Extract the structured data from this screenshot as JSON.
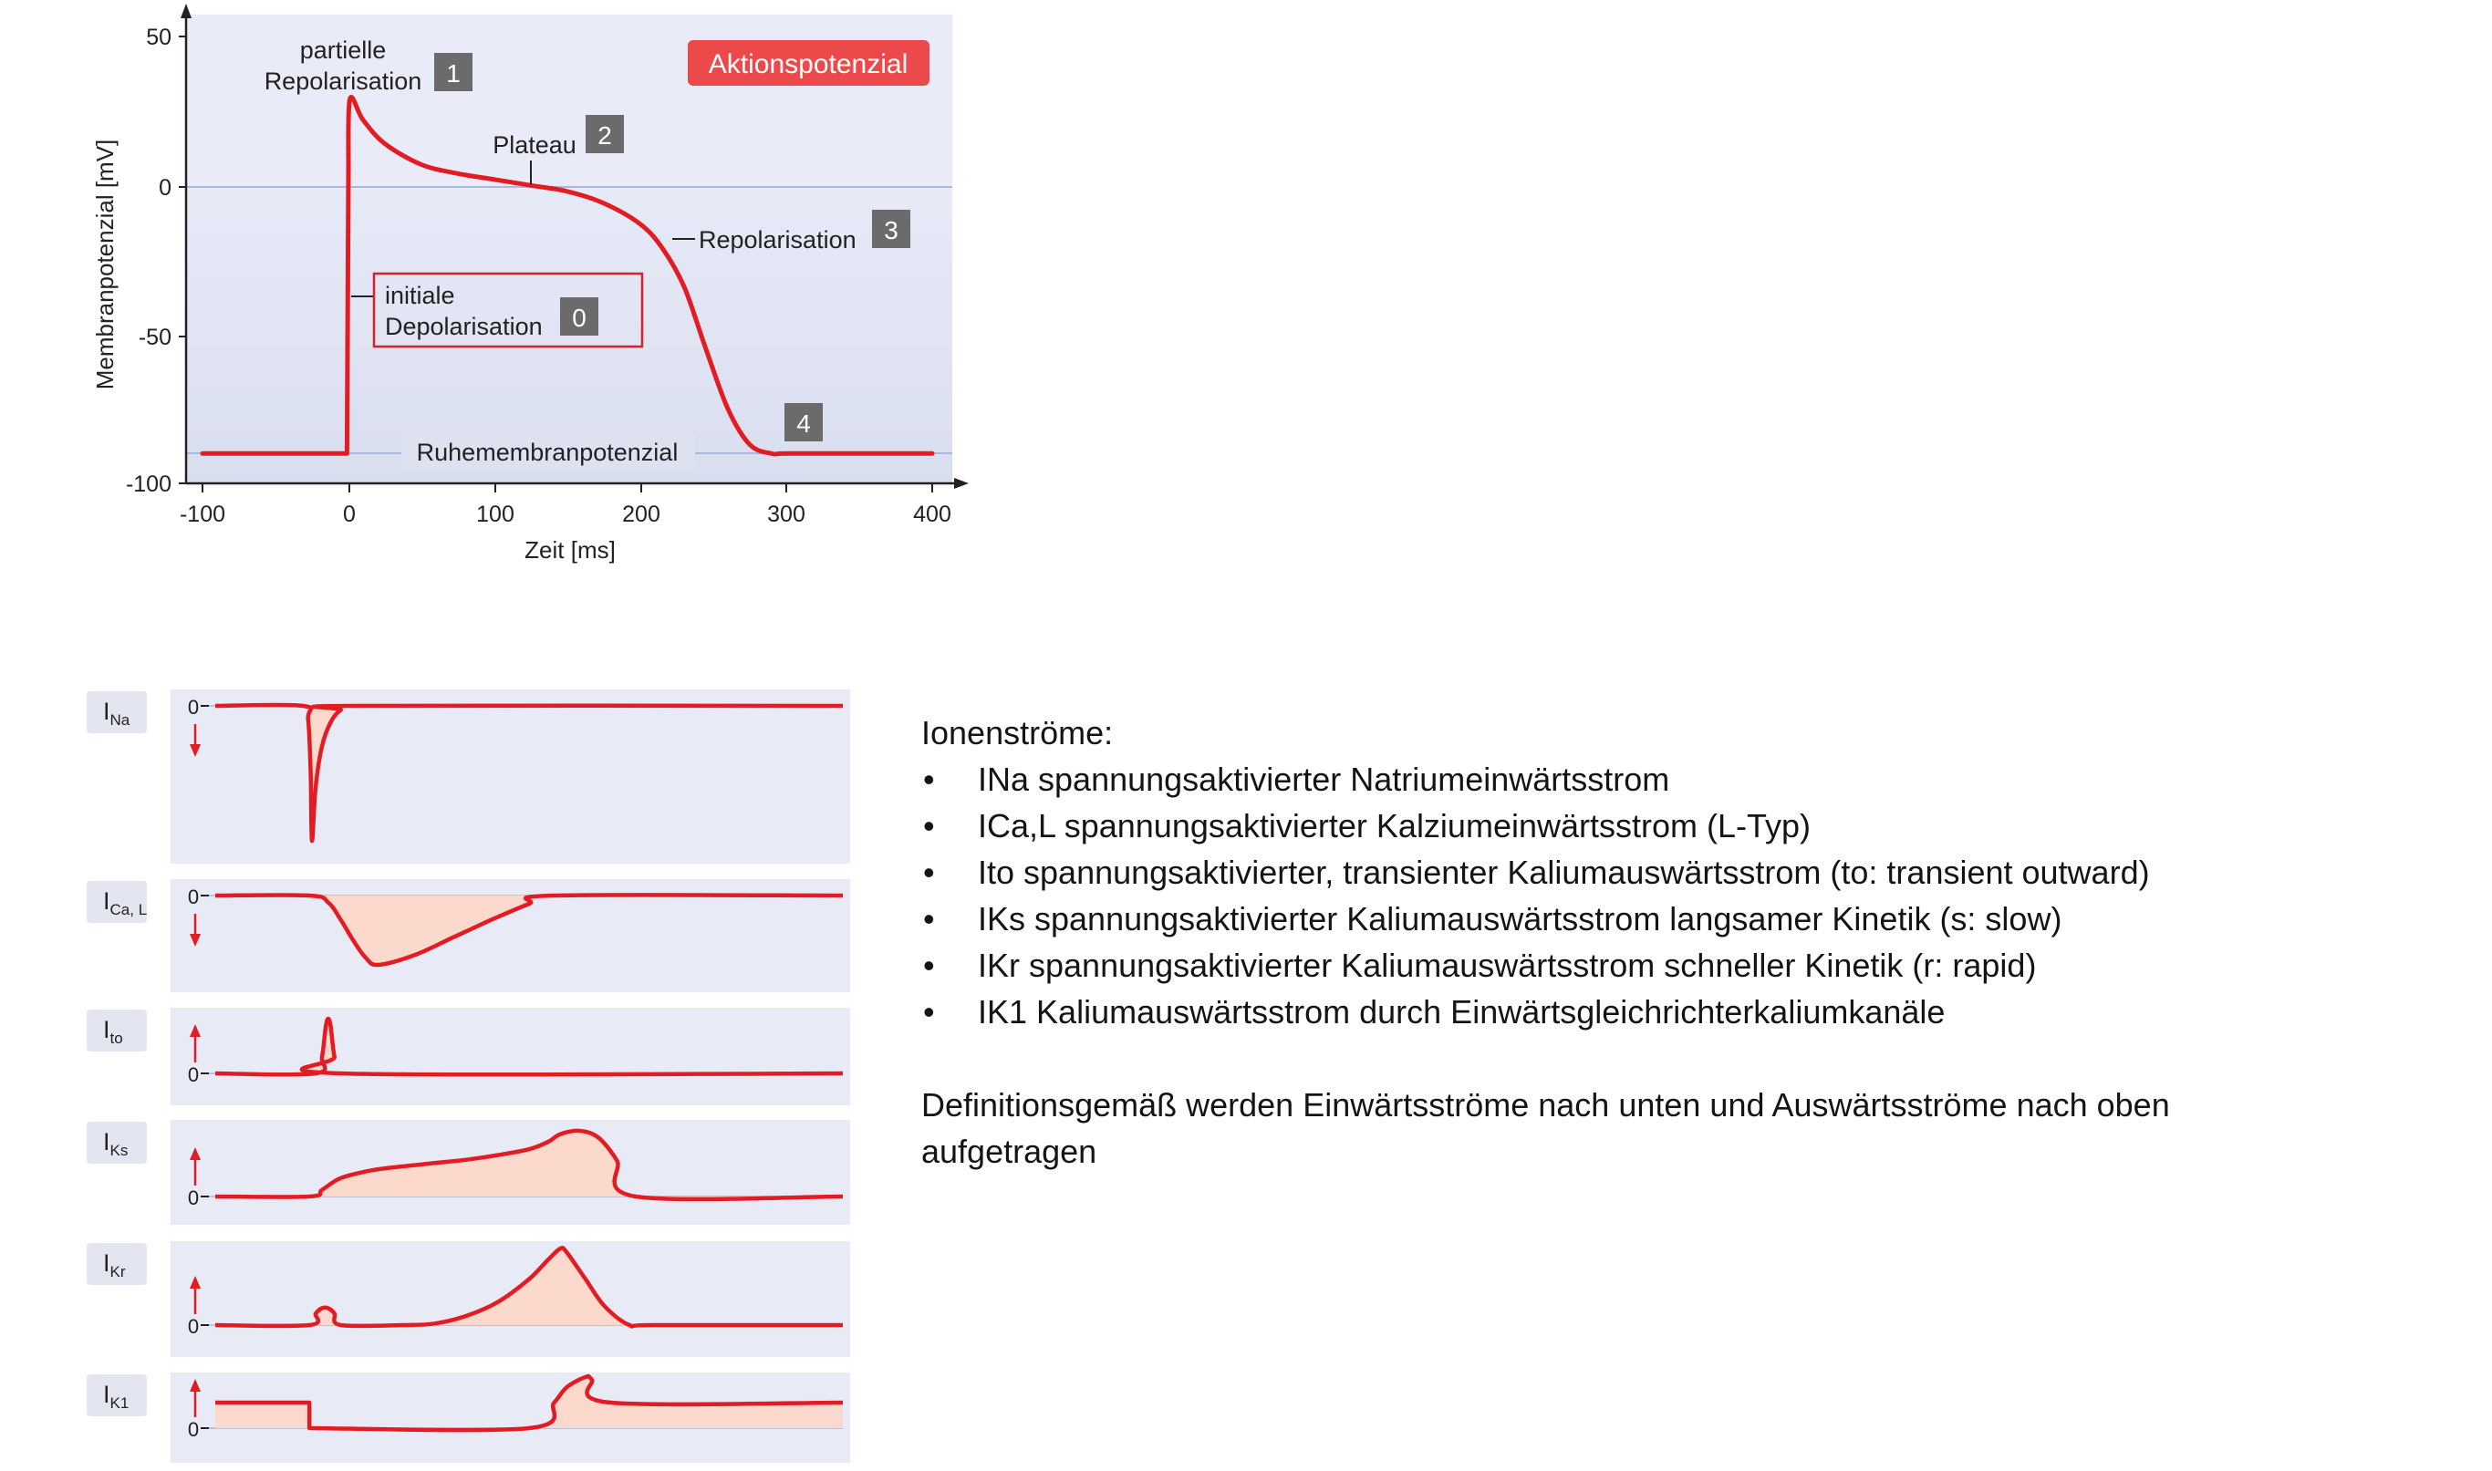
{
  "action_potential": {
    "badge": "Aktionspotenzial",
    "ylabel": "Membranpotenzial [mV]",
    "xlabel": "Zeit [ms]",
    "y_ticks": [
      "50",
      "0",
      "-50",
      "-100"
    ],
    "x_ticks": [
      "-100",
      "0",
      "100",
      "200",
      "300",
      "400"
    ],
    "phase_labels": {
      "p0_line1": "initiale",
      "p0_line2": "Depolarisation",
      "p0_num": "0",
      "p1_line1": "partielle",
      "p1_line2": "Repolarisation",
      "p1_num": "1",
      "p2_label": "Plateau",
      "p2_num": "2",
      "p3_label": "Repolarisation",
      "p3_num": "3",
      "p4_num": "4",
      "rest_label": "Ruhemembranpotenzial"
    }
  },
  "chart_data": [
    {
      "type": "line",
      "xlim": [
        -100,
        400
      ],
      "ylim": [
        -100,
        50
      ],
      "x_ticks": [
        -100,
        0,
        100,
        200,
        300,
        400
      ],
      "y_ticks": [
        -100,
        -50,
        0,
        50
      ],
      "grid": false,
      "color": "#e31b23",
      "x": [
        -100,
        -1,
        0,
        1,
        10,
        25,
        50,
        75,
        100,
        125,
        150,
        175,
        200,
        215,
        230,
        245,
        260,
        275,
        290,
        300,
        350,
        400
      ],
      "y": [
        -90,
        -90,
        5,
        29,
        22,
        14,
        7,
        4,
        2,
        0,
        -2,
        -6,
        -13,
        -21,
        -34,
        -55,
        -75,
        -87,
        -90,
        -90,
        -90,
        -90
      ]
    },
    {
      "type": "area",
      "x_units": "ms",
      "color": "#e31b23",
      "fill": "#fbd9cd",
      "series": [
        {
          "name": "INa",
          "direction": "down",
          "x": [
            -100,
            -30,
            -26,
            -24,
            -23,
            -20,
            -15,
            -8,
            0,
            10,
            400
          ],
          "y": [
            0,
            0,
            -0.1,
            -0.5,
            -1,
            -0.6,
            -0.3,
            -0.12,
            -0.03,
            0,
            0
          ]
        },
        {
          "name": "ICa,L",
          "direction": "down",
          "x": [
            -100,
            -25,
            -10,
            0,
            10,
            20,
            30,
            60,
            90,
            120,
            150,
            170,
            400
          ],
          "y": [
            0,
            0,
            -0.1,
            -0.35,
            -0.65,
            -0.9,
            -1,
            -0.85,
            -0.6,
            -0.35,
            -0.12,
            0,
            0
          ]
        },
        {
          "name": "Ito",
          "direction": "up",
          "x": [
            -100,
            -20,
            -15,
            -12,
            -10,
            -8,
            -5,
            0,
            400
          ],
          "y": [
            0,
            0,
            0.3,
            0.85,
            1,
            0.85,
            0.3,
            0,
            0
          ]
        },
        {
          "name": "IKs",
          "direction": "up",
          "x": [
            -100,
            -25,
            -15,
            0,
            25,
            50,
            75,
            100,
            125,
            150,
            165,
            175,
            190,
            205,
            220,
            235,
            400
          ],
          "y": [
            0,
            0,
            0.1,
            0.28,
            0.4,
            0.46,
            0.51,
            0.56,
            0.63,
            0.72,
            0.83,
            0.95,
            1,
            0.9,
            0.55,
            0,
            0
          ]
        },
        {
          "name": "IKr",
          "direction": "up",
          "x": [
            -100,
            -25,
            -20,
            -15,
            -10,
            -5,
            0,
            50,
            75,
            100,
            125,
            150,
            165,
            175,
            180,
            195,
            210,
            230,
            250,
            400
          ],
          "y": [
            0,
            0,
            0.15,
            0.22,
            0.22,
            0.15,
            0,
            0,
            0.02,
            0.12,
            0.3,
            0.6,
            0.85,
            1,
            0.95,
            0.6,
            0.25,
            0,
            0,
            0
          ]
        },
        {
          "name": "IK1",
          "direction": "up",
          "x": [
            -100,
            -25,
            -25,
            150,
            170,
            180,
            195,
            200,
            215,
            400
          ],
          "y": [
            0.5,
            0.5,
            0,
            0,
            0.5,
            0.8,
            1,
            0.95,
            0.5,
            0.5
          ]
        }
      ]
    }
  ],
  "currents_axes": {
    "zero_label": "0",
    "labels": [
      {
        "main": "I",
        "sub": "Na"
      },
      {
        "main": "I",
        "sub": "Ca, L"
      },
      {
        "main": "I",
        "sub": "to"
      },
      {
        "main": "I",
        "sub": "Ks"
      },
      {
        "main": "I",
        "sub": "Kr"
      },
      {
        "main": "I",
        "sub": "K1"
      }
    ]
  },
  "text_panel": {
    "heading": "Ionenströme:",
    "bullet_symbol": "•",
    "items": [
      "INa spannungsaktivierter Natriumeinwärtsstrom",
      "ICa,L spannungsaktivierter Kalziumeinwärtsstrom (L-Typ)",
      "Ito spannungsaktivierter, transienter Kaliumauswärtsstrom (to: transient outward)",
      "IKs spannungsaktivierter Kaliumauswärtsstrom langsamer Kinetik (s: slow)",
      "IKr spannungsaktivierter Kaliumauswärtsstrom schneller Kinetik (r: rapid)",
      "IK1 Kaliumauswärtsstrom durch Einwärtsgleichrichterkaliumkanäle"
    ],
    "note": "Definitionsgemäß werden Einwärtsströme nach unten und Auswärtsströme nach oben aufgetragen"
  }
}
